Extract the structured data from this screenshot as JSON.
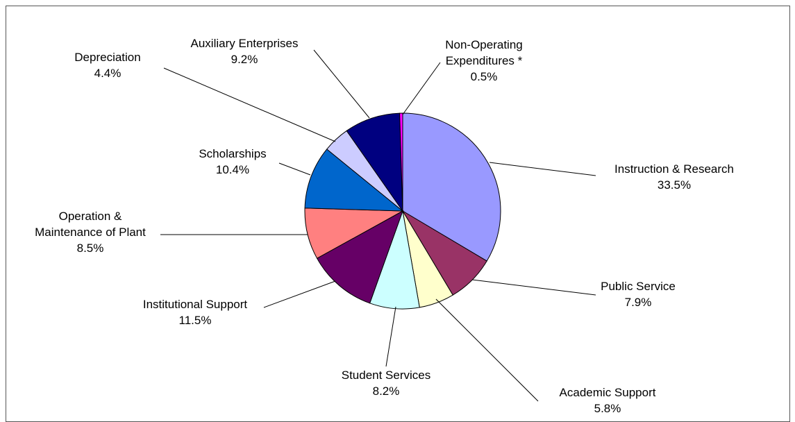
{
  "chart_data": {
    "type": "pie",
    "title": "",
    "slices": [
      {
        "label": "Instruction & Research",
        "value": 33.5,
        "display": "33.5%",
        "color": "#9999ff"
      },
      {
        "label": "Public Service",
        "value": 7.9,
        "display": "7.9%",
        "color": "#993366"
      },
      {
        "label": "Academic Support",
        "value": 5.8,
        "display": "5.8%",
        "color": "#ffffcc"
      },
      {
        "label": "Student Services",
        "value": 8.2,
        "display": "8.2%",
        "color": "#ccffff"
      },
      {
        "label": "Institutional Support",
        "value": 11.5,
        "display": "11.5%",
        "color": "#660066"
      },
      {
        "label": "Operation & Maintenance of Plant",
        "value": 8.5,
        "display": "8.5%",
        "color": "#ff8080"
      },
      {
        "label": "Scholarships",
        "value": 10.4,
        "display": "10.4%",
        "color": "#0066cc"
      },
      {
        "label": "Depreciation",
        "value": 4.4,
        "display": "4.4%",
        "color": "#ccccff"
      },
      {
        "label": "Auxiliary Enterprises",
        "value": 9.2,
        "display": "9.2%",
        "color": "#000080"
      },
      {
        "label": "Non-Operating Expenditures *",
        "value": 0.5,
        "display": "0.5%",
        "color": "#ff00ff"
      }
    ],
    "label_lines": [
      [
        "Instruction & Research"
      ],
      [
        "Public Service"
      ],
      [
        "Academic Support"
      ],
      [
        "Student Services"
      ],
      [
        "Institutional Support"
      ],
      [
        "Operation &",
        "Maintenance of Plant"
      ],
      [
        "Scholarships"
      ],
      [
        "Depreciation"
      ],
      [
        "Auxiliary Enterprises"
      ],
      [
        "Non-Operating",
        "Expenditures *"
      ]
    ],
    "legend": "none",
    "start_angle_deg": 0,
    "direction": "clockwise"
  }
}
